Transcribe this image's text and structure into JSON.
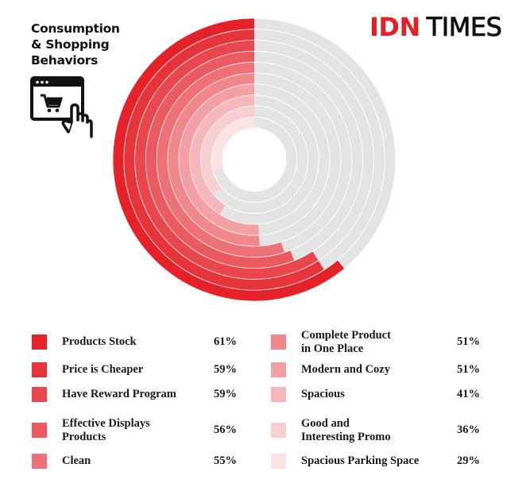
{
  "title": [
    "Consumption",
    "& Shopping",
    "Behaviors"
  ],
  "logo": {
    "part1": "IDN",
    "part2": "TIMES",
    "color": "#e41f26"
  },
  "icons": [
    "shopping-cart-browser-icon",
    "pointing-hand-icon"
  ],
  "chart_data": {
    "type": "radial-bar",
    "direction": "counterclockwise from top",
    "max": 100,
    "unit": "%",
    "track_color": "#e3e3e3",
    "legend_placement": "bottom",
    "categories": [
      "Products Stock",
      "Price is Cheaper",
      "Have Reward Program",
      "Effective Displays Products",
      "Clean",
      "Complete Product in One Place",
      "Modern and Cozy",
      "Spacious",
      "Good and Interesting Promo",
      "Spacious Parking Space"
    ],
    "legend_labels": [
      [
        "Products Stock"
      ],
      [
        "Price is Cheaper"
      ],
      [
        "Have Reward Program"
      ],
      [
        "Effective Displays",
        "Products"
      ],
      [
        "Clean"
      ],
      [
        "Complete Product",
        "in One Place"
      ],
      [
        "Modern and Cozy"
      ],
      [
        "Spacious"
      ],
      [
        "Good and",
        "Interesting Promo"
      ],
      [
        "Spacious Parking Space"
      ]
    ],
    "values": [
      61,
      59,
      59,
      56,
      55,
      51,
      51,
      41,
      36,
      29
    ],
    "value_labels": [
      "61%",
      "59%",
      "59%",
      "56%",
      "55%",
      "51%",
      "51%",
      "41%",
      "36%",
      "29%"
    ],
    "colors": [
      "#e52129",
      "#e7343b",
      "#e9474d",
      "#eb5a60",
      "#ed7176",
      "#ef878b",
      "#f2a0a3",
      "#f5b8ba",
      "#f8cfd1",
      "#fbe3e4"
    ]
  }
}
